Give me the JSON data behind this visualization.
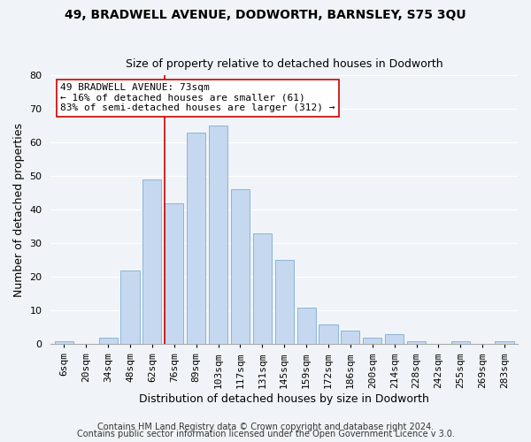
{
  "title": "49, BRADWELL AVENUE, DODWORTH, BARNSLEY, S75 3QU",
  "subtitle": "Size of property relative to detached houses in Dodworth",
  "xlabel": "Distribution of detached houses by size in Dodworth",
  "ylabel": "Number of detached properties",
  "footer1": "Contains HM Land Registry data © Crown copyright and database right 2024.",
  "footer2": "Contains public sector information licensed under the Open Government Licence v 3.0.",
  "bar_labels": [
    "6sqm",
    "20sqm",
    "34sqm",
    "48sqm",
    "62sqm",
    "76sqm",
    "89sqm",
    "103sqm",
    "117sqm",
    "131sqm",
    "145sqm",
    "159sqm",
    "172sqm",
    "186sqm",
    "200sqm",
    "214sqm",
    "228sqm",
    "242sqm",
    "255sqm",
    "269sqm",
    "283sqm"
  ],
  "bar_values": [
    1,
    0,
    2,
    22,
    49,
    42,
    63,
    65,
    46,
    33,
    25,
    11,
    6,
    4,
    2,
    3,
    1,
    0,
    1,
    0,
    1
  ],
  "bar_color": "#c5d8ef",
  "bar_edge_color": "#8cb4d9",
  "vline_color": "#cc0000",
  "vline_x_index": 5,
  "annotation_line1": "49 BRADWELL AVENUE: 73sqm",
  "annotation_line2": "← 16% of detached houses are smaller (61)",
  "annotation_line3": "83% of semi-detached houses are larger (312) →",
  "annotation_box_facecolor": "#ffffff",
  "annotation_box_edgecolor": "#cc0000",
  "ylim": [
    0,
    80
  ],
  "yticks": [
    0,
    10,
    20,
    30,
    40,
    50,
    60,
    70,
    80
  ],
  "fig_facecolor": "#f0f4f8",
  "axes_facecolor": "#f0f4f8",
  "grid_color": "#ffffff",
  "title_fontsize": 10,
  "subtitle_fontsize": 9,
  "ylabel_fontsize": 9,
  "xlabel_fontsize": 9,
  "tick_fontsize": 8,
  "annot_fontsize": 8,
  "footer_fontsize": 7
}
